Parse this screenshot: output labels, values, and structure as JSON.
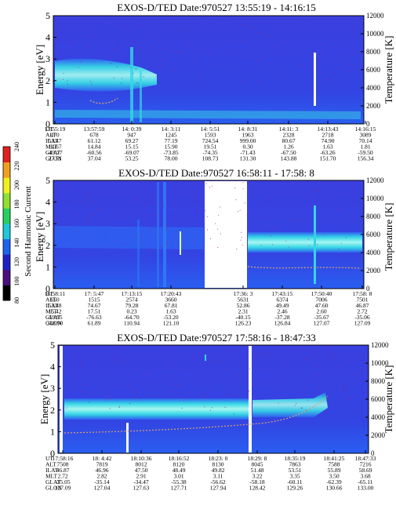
{
  "panels": [
    {
      "title": "EXOS-D/TED   Date:970527   13:55:19 - 14:16:15",
      "energy_label": "Energy [eV]",
      "temperature_label": "Temperature [K]",
      "energy_ticks": [
        "0",
        "1",
        "2",
        "3",
        "4",
        "5"
      ],
      "temperature_ticks": [
        "0",
        "2000",
        "4000",
        "6000",
        "8000",
        "10000",
        "12000"
      ],
      "ephemeris": {
        "labels": [
          "UT",
          "ALT",
          "ILAT",
          "MLT",
          "GLAT",
          "GLON"
        ],
        "columns": [
          [
            "13:55:19",
            "470",
            "53.47",
            "14.67",
            "-49.77",
            "27.51"
          ],
          [
            "13:57:59",
            "678",
            "61.12",
            "14.84",
            "-60.56",
            "37.04"
          ],
          [
            "14: 0:39",
            "947",
            "69.27",
            "15.15",
            "-69.07",
            "53.25"
          ],
          [
            "14: 3:11",
            "1245",
            "77.19",
            "15.90",
            "-73.85",
            "78.00"
          ],
          [
            "14: 5:51",
            "1593",
            "724.54",
            "19.51",
            "-74.35",
            "108.73"
          ],
          [
            "14: 8:31",
            "1963",
            "999.00",
            "0.30",
            "-71.43",
            "131.30"
          ],
          [
            "14:11: 3",
            "2328",
            "80.67",
            "1.26",
            "-67.50",
            "143.88"
          ],
          [
            "14:13:43",
            "2718",
            "74.90",
            "1.63",
            "-63.26",
            "151.70"
          ],
          [
            "14:16:15",
            "3089",
            "70.14",
            "1.81",
            "-59.50",
            "156.34"
          ]
        ]
      }
    },
    {
      "title": "EXOS-D/TED   Date:970527   16:58:11 - 17:58: 8",
      "energy_label": "Energy [eV]",
      "temperature_label": "Temperature [K]",
      "energy_ticks": [
        "0",
        "1",
        "2",
        "3",
        "4",
        "5"
      ],
      "temperature_ticks": [
        "0",
        "2000",
        "4000",
        "6000",
        "8000",
        "10000",
        "12000"
      ],
      "ephemeris": {
        "labels": [
          "UT",
          "ALT",
          "ILAT",
          "MLT",
          "GLAT",
          "GLON"
        ],
        "columns": [
          [
            "16:58:11",
            "650",
            "53.48",
            "15.42",
            "-59.95",
            "348.90"
          ],
          [
            "17: 5:47",
            "1515",
            "74.67",
            "17.51",
            "-76.63",
            "61.89"
          ],
          [
            "17:13:15",
            "2574",
            "79.28",
            "0.23",
            "-64.70",
            "110.94"
          ],
          [
            "17:20:43",
            "3660",
            "67.81",
            "1.63",
            "-53.20",
            "121.10"
          ],
          [
            "17:36: 3",
            "5631",
            "52.86",
            "2.31",
            "-40.15",
            "126.23"
          ],
          [
            "17:43:15",
            "6374",
            "49.49",
            "2.46",
            "-37.28",
            "126.84"
          ],
          [
            "17:50:40",
            "7006",
            "47.60",
            "2.60",
            "-35.67",
            "127.07"
          ],
          [
            "17:58: 8",
            "7501",
            "46.87",
            "2.72",
            "-35.06",
            "127.09"
          ]
        ]
      }
    },
    {
      "title": "EXOS-D/TED   Date:970527   17:58:16 - 18:47:33",
      "energy_label": "Energy [eV]",
      "temperature_label": "Temperature [K]",
      "energy_ticks": [
        "0",
        "1",
        "2",
        "3",
        "4",
        "5"
      ],
      "temperature_ticks": [
        "0",
        "2000",
        "4000",
        "6000",
        "8000",
        "10000",
        "12000"
      ],
      "ephemeris": {
        "labels": [
          "UT",
          "ALT",
          "ILAT",
          "MLT",
          "GLAT",
          "GLON"
        ],
        "columns": [
          [
            "17:58:16",
            "7508",
            "46.87",
            "2.72",
            "-35.05",
            "127.09"
          ],
          [
            "18: 4:42",
            "7819",
            "46.96",
            "2.82",
            "-35.14",
            "127.04"
          ],
          [
            "18:10:36",
            "8012",
            "47.50",
            "2.91",
            "-34.47",
            "127.63"
          ],
          [
            "18:16:52",
            "8120",
            "48.49",
            "3.01",
            "-55.38",
            "127.71"
          ],
          [
            "18:23: 0",
            "8130",
            "49.82",
            "3.11",
            "-56.62",
            "127.94"
          ],
          [
            "18:29: 8",
            "8045",
            "51.48",
            "3.22",
            "-58.18",
            "128.42"
          ],
          [
            "18:35:19",
            "7863",
            "53.51",
            "3.35",
            "-60.11",
            "129.26"
          ],
          [
            "18:41:25",
            "7588",
            "55.89",
            "3.50",
            "-62.39",
            "130.66"
          ],
          [
            "18:47:33",
            "7216",
            "58.69",
            "3.68",
            "-65.11",
            "133.00"
          ]
        ]
      }
    }
  ],
  "colorbar": {
    "label": "Second Harmonic Current",
    "ticks": [
      "80",
      "100",
      "120",
      "140",
      "160",
      "180",
      "200",
      "220",
      "240"
    ]
  },
  "colors": {
    "background_low": "#2a1fd0",
    "background_mid": "#3f4ee6",
    "band_cyan": "#36d6e6",
    "band_core": "#a6f6f0",
    "temperature_trace": "#d8a070",
    "blank": "#ffffff"
  },
  "chart_data": [
    {
      "type": "heatmap",
      "title": "EXOS-D/TED   Date:970527   13:55:19 - 14:16:15",
      "xlabel": "UT",
      "ylabel": "Energy [eV]",
      "y2label": "Temperature [K]",
      "ylim": [
        0,
        5
      ],
      "y2lim": [
        0,
        12000
      ],
      "x": [
        "13:55:19",
        "13:57:59",
        "14: 0:39",
        "14: 3:11",
        "14: 5:51",
        "14: 8:31",
        "14:11: 3",
        "14:13:43",
        "14:16:15"
      ],
      "band_energy_ev": [
        1.9,
        2.2,
        2.0,
        1.9,
        0.4,
        0.3,
        0.3,
        0.3,
        0.3
      ],
      "band_width_ev": [
        1.4,
        1.2,
        0.7,
        0.3,
        0.2,
        0.2,
        0.2,
        0.2,
        0.2
      ],
      "temperature_k": [
        null,
        3000,
        null,
        null,
        null,
        null,
        null,
        null,
        null
      ]
    },
    {
      "type": "heatmap",
      "title": "EXOS-D/TED   Date:970527   16:58:11 - 17:58: 8",
      "xlabel": "UT",
      "ylabel": "Energy [eV]",
      "y2label": "Temperature [K]",
      "ylim": [
        0,
        5
      ],
      "y2lim": [
        0,
        12000
      ],
      "x": [
        "16:58:11",
        "17: 5:47",
        "17:13:15",
        "17:20:43",
        "17:36: 3",
        "17:43:15",
        "17:50:40",
        "17:58: 8"
      ],
      "band_energy_ev": [
        2.0,
        2.0,
        2.0,
        null,
        2.0,
        2.0,
        2.0,
        2.0
      ],
      "band_width_ev": [
        1.2,
        1.1,
        1.0,
        null,
        0.9,
        0.9,
        0.9,
        0.9
      ],
      "temperature_k": [
        null,
        null,
        null,
        null,
        2700,
        2400,
        2600,
        2500
      ],
      "data_gap": [
        "17:25:30",
        "17:35:00"
      ]
    },
    {
      "type": "heatmap",
      "title": "EXOS-D/TED   Date:970527   17:58:16 - 18:47:33",
      "xlabel": "UT",
      "ylabel": "Energy [eV]",
      "y2label": "Temperature [K]",
      "ylim": [
        0,
        5
      ],
      "y2lim": [
        0,
        12000
      ],
      "x": [
        "17:58:16",
        "18: 4:42",
        "18:10:36",
        "18:16:52",
        "18:23: 0",
        "18:29: 8",
        "18:35:19",
        "18:41:25",
        "18:47:33"
      ],
      "band_energy_ev": [
        2.1,
        2.1,
        2.1,
        2.1,
        2.1,
        2.1,
        2.0,
        2.1,
        2.1
      ],
      "band_width_ev": [
        0.9,
        1.0,
        1.0,
        1.0,
        1.0,
        0.8,
        0.7,
        0.6,
        0.6
      ],
      "temperature_k": [
        2200,
        2300,
        2400,
        2500,
        2600,
        2800,
        3300,
        4300,
        5500
      ]
    }
  ]
}
